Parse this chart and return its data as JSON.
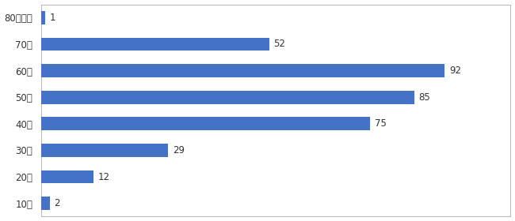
{
  "categories": [
    "10代",
    "20代",
    "30代",
    "40代",
    "50代",
    "60代",
    "70代",
    "80代以上"
  ],
  "values": [
    2,
    12,
    29,
    75,
    85,
    92,
    52,
    1
  ],
  "bar_color": "#4472C4",
  "background_color": "#ffffff",
  "plot_bg_color": "#ffffff",
  "xlim": [
    0,
    107
  ],
  "label_fontsize": 8.5,
  "tick_fontsize": 8.5,
  "grid_color": "#d0d0d0",
  "bar_height": 0.5,
  "figwidth": 6.5,
  "figheight": 2.8,
  "border_color": "#bbbbbb"
}
